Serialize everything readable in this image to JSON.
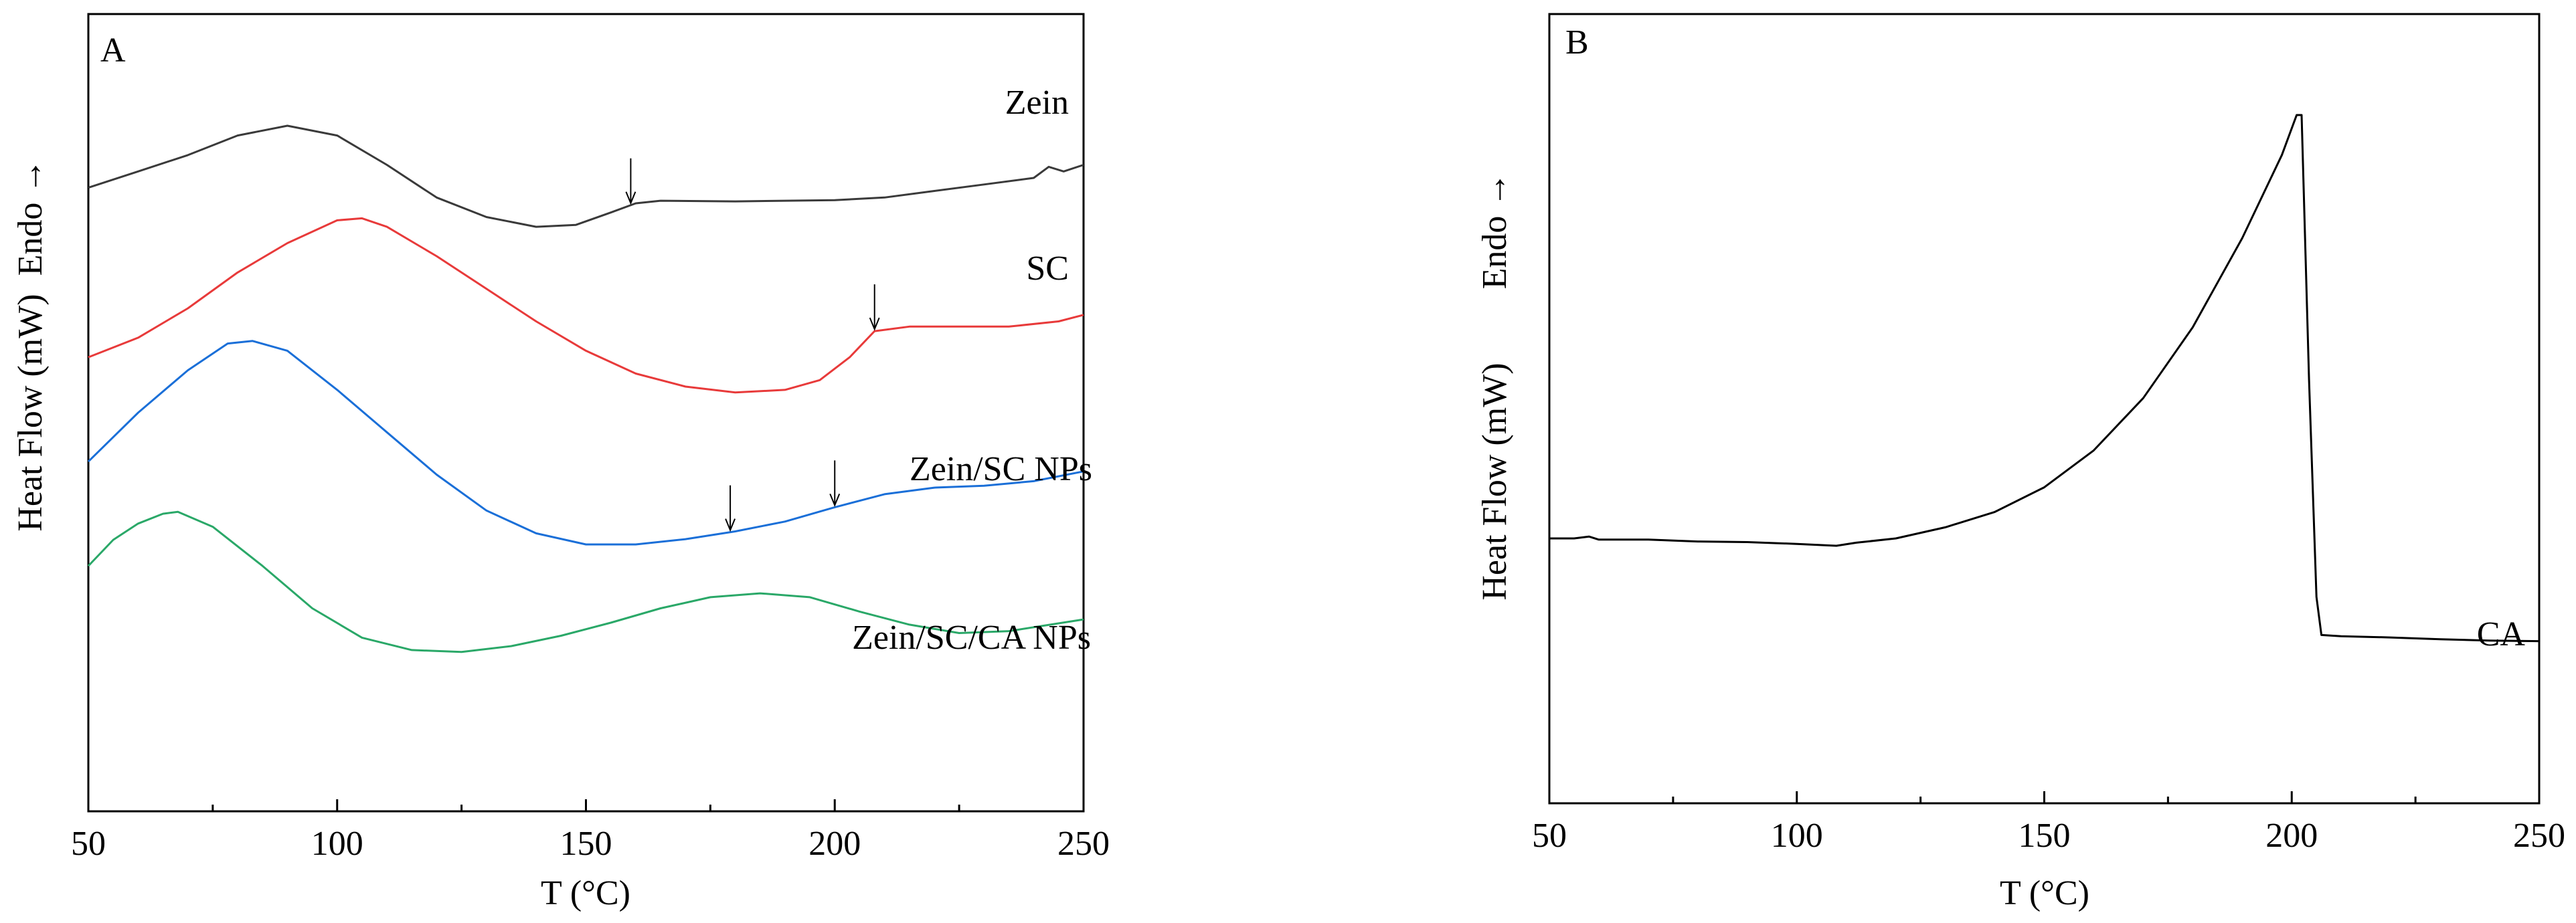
{
  "chart_data": [
    {
      "panel_label": "A",
      "type": "line",
      "xlabel": "T (°C)",
      "ylabel": "Heat Flow (mW)",
      "endo_label": "Endo →",
      "xlim": [
        50,
        250
      ],
      "ylim": [
        0,
        100
      ],
      "x_ticks": [
        50,
        100,
        150,
        200,
        250
      ],
      "x_tick_labels": [
        "50",
        "100",
        "150",
        "200",
        "250"
      ],
      "y_ticks_shown": false,
      "series": [
        {
          "name": "Zein",
          "color": "#3a3a3a",
          "points": [
            [
              50,
              82.5
            ],
            [
              60,
              85
            ],
            [
              70,
              87.5
            ],
            [
              80,
              90.5
            ],
            [
              90,
              92
            ],
            [
              100,
              90.5
            ],
            [
              110,
              86
            ],
            [
              120,
              81
            ],
            [
              130,
              78
            ],
            [
              140,
              76.5
            ],
            [
              148,
              76.8
            ],
            [
              155,
              78.7
            ],
            [
              160,
              80.1
            ],
            [
              165,
              80.5
            ],
            [
              180,
              80.4
            ],
            [
              200,
              80.6
            ],
            [
              210,
              81
            ],
            [
              220,
              82
            ],
            [
              230,
              83
            ],
            [
              240,
              84
            ],
            [
              243,
              85.7
            ],
            [
              246,
              85
            ],
            [
              250,
              86
            ]
          ],
          "markers": [
            159
          ]
        },
        {
          "name": "SC",
          "color": "#e83a3a",
          "points": [
            [
              50,
              56.5
            ],
            [
              60,
              59.5
            ],
            [
              70,
              64
            ],
            [
              80,
              69.5
            ],
            [
              90,
              74
            ],
            [
              100,
              77.5
            ],
            [
              105,
              77.8
            ],
            [
              110,
              76.5
            ],
            [
              120,
              72
            ],
            [
              130,
              67
            ],
            [
              140,
              62
            ],
            [
              150,
              57.5
            ],
            [
              160,
              54
            ],
            [
              170,
              52
            ],
            [
              180,
              51.1
            ],
            [
              190,
              51.5
            ],
            [
              197,
              53
            ],
            [
              203,
              56.5
            ],
            [
              208,
              60.5
            ],
            [
              215,
              61.2
            ],
            [
              225,
              61.2
            ],
            [
              235,
              61.2
            ],
            [
              245,
              62
            ],
            [
              250,
              63
            ]
          ],
          "markers": [
            208
          ]
        },
        {
          "name": "Zein/SC NPs",
          "color": "#1a6fd8",
          "points": [
            [
              50,
              40.5
            ],
            [
              60,
              48
            ],
            [
              70,
              54.5
            ],
            [
              78,
              58.6
            ],
            [
              83,
              59
            ],
            [
              90,
              57.5
            ],
            [
              100,
              51.5
            ],
            [
              110,
              45
            ],
            [
              120,
              38.5
            ],
            [
              130,
              33
            ],
            [
              140,
              29.5
            ],
            [
              150,
              27.8
            ],
            [
              160,
              27.8
            ],
            [
              170,
              28.6
            ],
            [
              180,
              29.8
            ],
            [
              190,
              31.3
            ],
            [
              200,
              33.5
            ],
            [
              210,
              35.5
            ],
            [
              220,
              36.5
            ],
            [
              230,
              36.8
            ],
            [
              240,
              37.5
            ],
            [
              250,
              39
            ]
          ],
          "markers": [
            179,
            200
          ]
        },
        {
          "name": "Zein/SC/CA NPs",
          "color": "#2aa868",
          "points": [
            [
              50,
              24.5
            ],
            [
              55,
              28.5
            ],
            [
              60,
              31
            ],
            [
              65,
              32.5
            ],
            [
              68,
              32.8
            ],
            [
              75,
              30.5
            ],
            [
              85,
              24.5
            ],
            [
              95,
              18
            ],
            [
              105,
              13.5
            ],
            [
              115,
              11.6
            ],
            [
              125,
              11.3
            ],
            [
              135,
              12.2
            ],
            [
              145,
              13.8
            ],
            [
              155,
              15.8
            ],
            [
              165,
              18
            ],
            [
              175,
              19.7
            ],
            [
              185,
              20.3
            ],
            [
              195,
              19.7
            ],
            [
              205,
              17.5
            ],
            [
              215,
              15.5
            ],
            [
              225,
              14.2
            ],
            [
              235,
              14.5
            ],
            [
              250,
              16.3
            ]
          ],
          "markers": []
        }
      ]
    },
    {
      "panel_label": "B",
      "type": "line",
      "xlabel": "T (°C)",
      "ylabel": "Heat Flow (mW)",
      "endo_label": "Endo →",
      "xlim": [
        50,
        250
      ],
      "ylim": [
        0,
        100
      ],
      "x_ticks": [
        50,
        100,
        150,
        200,
        250
      ],
      "x_tick_labels": [
        "50",
        "100",
        "150",
        "200",
        "250"
      ],
      "y_ticks_shown": false,
      "series": [
        {
          "name": "CA",
          "color": "#000000",
          "points": [
            [
              50,
              31.2
            ],
            [
              55,
              31.2
            ],
            [
              58,
              31.5
            ],
            [
              60,
              31
            ],
            [
              70,
              31
            ],
            [
              80,
              30.7
            ],
            [
              90,
              30.6
            ],
            [
              100,
              30.3
            ],
            [
              108,
              30
            ],
            [
              112,
              30.5
            ],
            [
              120,
              31.2
            ],
            [
              130,
              33
            ],
            [
              140,
              35.5
            ],
            [
              150,
              39.5
            ],
            [
              160,
              45.5
            ],
            [
              170,
              54
            ],
            [
              180,
              65.5
            ],
            [
              190,
              80
            ],
            [
              198,
              93.5
            ],
            [
              201,
              100
            ],
            [
              202,
              100
            ],
            [
              203.5,
              57
            ],
            [
              205,
              21.7
            ],
            [
              206,
              15.5
            ],
            [
              210,
              15.3
            ],
            [
              220,
              15.1
            ],
            [
              230,
              14.8
            ],
            [
              240,
              14.6
            ],
            [
              250,
              14.5
            ]
          ],
          "markers": []
        }
      ]
    }
  ]
}
